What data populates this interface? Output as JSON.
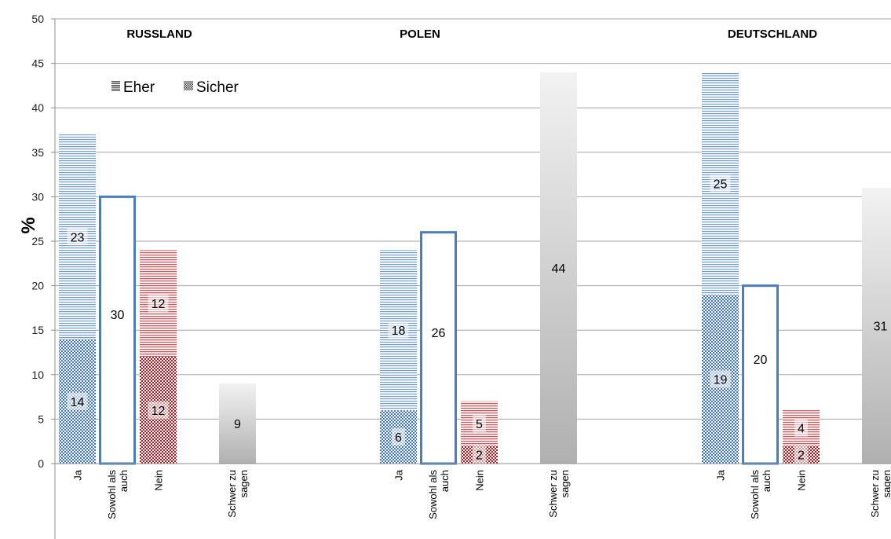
{
  "chart_data": {
    "type": "bar",
    "ylabel": "%",
    "ylim": [
      0,
      50
    ],
    "yticks": [
      "0",
      "5",
      "10",
      "15",
      "20",
      "25",
      "30",
      "35",
      "40",
      "45",
      "50"
    ],
    "grid": true,
    "legend": {
      "placement": "top-left",
      "entries": [
        {
          "label": "Eher",
          "pattern": "horizontal-lines"
        },
        {
          "label": "Sicher",
          "pattern": "checkerboard"
        }
      ]
    },
    "colors": {
      "ja": "#5b8fd1",
      "sowohl": "#4a7ebf",
      "nein": "#c0272d",
      "schwer": "#b4b4b4",
      "grid": "#a6a6a6"
    },
    "panels": [
      {
        "title": "RUSSLAND",
        "bars": [
          {
            "category": [
              "Ja"
            ],
            "style": "ja",
            "sicher": 14,
            "eher": 23,
            "sicher_label": "14",
            "eher_label": "23"
          },
          {
            "category": [
              "Sowohl als",
              "auch"
            ],
            "style": "sowohl",
            "value": 30,
            "label": "30"
          },
          {
            "category": [
              "Nein"
            ],
            "style": "nein",
            "sicher": 12,
            "eher": 12,
            "sicher_label": "12",
            "eher_label": "12"
          },
          {
            "category": [
              "Schwer zu",
              "sagen"
            ],
            "style": "schwer",
            "value": 9,
            "label": "9"
          }
        ]
      },
      {
        "title": "POLEN",
        "bars": [
          {
            "category": [
              "Ja"
            ],
            "style": "ja",
            "sicher": 6,
            "eher": 18,
            "sicher_label": "6",
            "eher_label": "18"
          },
          {
            "category": [
              "Sowohl als",
              "auch"
            ],
            "style": "sowohl",
            "value": 26,
            "label": "26"
          },
          {
            "category": [
              "Nein"
            ],
            "style": "nein",
            "sicher": 2,
            "eher": 5,
            "sicher_label": "2",
            "eher_label": "5"
          },
          {
            "category": [
              "Schwer zu",
              "sagen"
            ],
            "style": "schwer",
            "value": 44,
            "label": "44"
          }
        ]
      },
      {
        "title": "DEUTSCHLAND",
        "bars": [
          {
            "category": [
              "Ja"
            ],
            "style": "ja",
            "sicher": 19,
            "eher": 25,
            "sicher_label": "19",
            "eher_label": "25"
          },
          {
            "category": [
              "Sowohl als",
              "auch"
            ],
            "style": "sowohl",
            "value": 20,
            "label": "20"
          },
          {
            "category": [
              "Nein"
            ],
            "style": "nein",
            "sicher": 2,
            "eher": 4,
            "sicher_label": "2",
            "eher_label": "4"
          },
          {
            "category": [
              "Schwer zu",
              "sagen"
            ],
            "style": "schwer",
            "value": 31,
            "label": "31"
          }
        ]
      }
    ]
  }
}
